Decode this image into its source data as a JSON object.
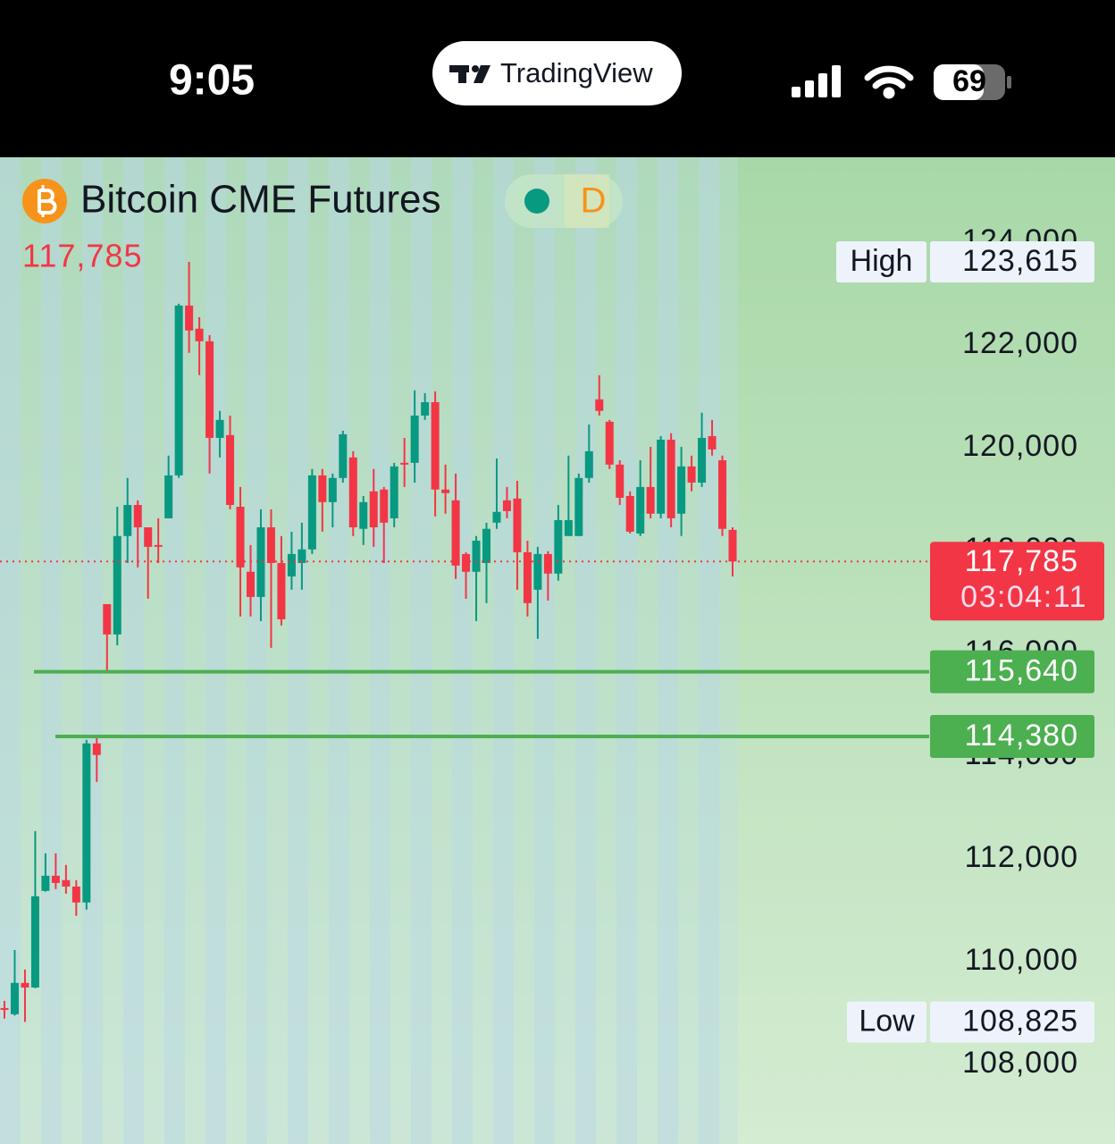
{
  "status_bar": {
    "time": "9:05",
    "app": "TradingView",
    "battery": "69"
  },
  "chart_data": {
    "type": "candlestick",
    "title": "Bitcoin CME Futures",
    "interval": "D",
    "last_price": {
      "value": 117785,
      "label": "117,785"
    },
    "countdown": "03:04:11",
    "up_color": "#089981",
    "down_color": "#f23645",
    "open": [
      109095,
      108975,
      109585,
      109495,
      111375,
      111670,
      111585,
      111460,
      111150,
      114245,
      116955,
      116365,
      118280,
      118885,
      118450,
      118105,
      118625,
      119460,
      122765,
      122315,
      122070,
      120190,
      120245,
      118850,
      117585,
      117095,
      118450,
      117755,
      117495,
      117755,
      118020,
      119460,
      118940,
      119410,
      119810,
      118420,
      119150,
      119185,
      118625,
      119705,
      119705,
      120625,
      120885,
      119185,
      118975,
      117930,
      117585,
      117755,
      118540,
      118975,
      119010,
      117965,
      117235,
      117930,
      117550,
      118280,
      118280,
      119410,
      120940,
      120505,
      119670,
      119060,
      118330,
      119235,
      118715,
      120155,
      118715,
      119635,
      119320,
      120225,
      119755,
      118400
    ],
    "high": [
      109235,
      110225,
      109845,
      112540,
      112105,
      112105,
      111880,
      111585,
      114315,
      114380,
      116955,
      118850,
      119410,
      118975,
      118450,
      118625,
      119845,
      122800,
      123615,
      122540,
      122190,
      120715,
      120625,
      119235,
      118105,
      118800,
      118800,
      118280,
      118365,
      118540,
      119585,
      119585,
      119495,
      120330,
      119930,
      119060,
      119585,
      119235,
      119705,
      120190,
      121115,
      121060,
      121095,
      119670,
      119495,
      117965,
      118280,
      118540,
      119790,
      119235,
      119355,
      118190,
      118070,
      117985,
      118885,
      119845,
      119495,
      120450,
      121410,
      120540,
      119755,
      119150,
      119755,
      120015,
      120225,
      120280,
      120015,
      119845,
      120680,
      120540,
      119845,
      118450
    ],
    "low": [
      108890,
      108950,
      108825,
      109480,
      111360,
      111410,
      111320,
      110890,
      111010,
      113495,
      115640,
      116155,
      117755,
      117670,
      117060,
      117755,
      118625,
      119410,
      121845,
      121410,
      119495,
      119810,
      118800,
      116715,
      116715,
      116625,
      116105,
      116540,
      117235,
      117235,
      117930,
      118365,
      118450,
      119320,
      118280,
      118105,
      118070,
      117755,
      118450,
      119235,
      119320,
      120540,
      118660,
      118715,
      117445,
      117060,
      116625,
      116975,
      118420,
      118625,
      117235,
      116715,
      116280,
      117025,
      117410,
      118280,
      118280,
      119320,
      120625,
      119585,
      118885,
      118330,
      118280,
      118625,
      118625,
      118450,
      118280,
      119150,
      119235,
      119845,
      118280,
      117495
    ],
    "close": [
      109080,
      109585,
      109495,
      111270,
      111670,
      111530,
      111460,
      111150,
      114245,
      114020,
      116365,
      118280,
      118885,
      118450,
      118070,
      118090,
      119460,
      122765,
      122280,
      122070,
      120190,
      120540,
      118885,
      117670,
      117095,
      118450,
      117755,
      116660,
      117930,
      118020,
      119460,
      118940,
      119410,
      120260,
      118450,
      118940,
      118450,
      118540,
      119635,
      119690,
      120625,
      120885,
      119185,
      119115,
      117705,
      117585,
      118190,
      118420,
      118750,
      118765,
      117965,
      116975,
      117930,
      117550,
      118590,
      118590,
      119410,
      119930,
      120715,
      119670,
      119025,
      118365,
      119235,
      118715,
      120155,
      118625,
      119635,
      119320,
      120190,
      119965,
      118420,
      117785
    ],
    "ylim": [
      106450,
      125650
    ],
    "yticks": [
      {
        "value": 108000,
        "label": "108,000"
      },
      {
        "value": 110000,
        "label": "110,000"
      },
      {
        "value": 112000,
        "label": "112,000"
      },
      {
        "value": 114000,
        "label": "114,000"
      },
      {
        "value": 116000,
        "label": "116,000"
      },
      {
        "value": 118000,
        "label": "118,000"
      },
      {
        "value": 120000,
        "label": "120,000"
      },
      {
        "value": 122000,
        "label": "122,000"
      },
      {
        "value": 124000,
        "label": "124,000"
      }
    ],
    "levels": [
      {
        "value": 115640,
        "label": "115,640",
        "color": "#4caf50"
      },
      {
        "value": 114380,
        "label": "114,380",
        "color": "#4caf50"
      }
    ],
    "high_marker": {
      "name": "High",
      "value": 123615,
      "label": "123,615"
    },
    "low_marker": {
      "name": "Low",
      "value": 108825,
      "label": "108,825"
    }
  }
}
